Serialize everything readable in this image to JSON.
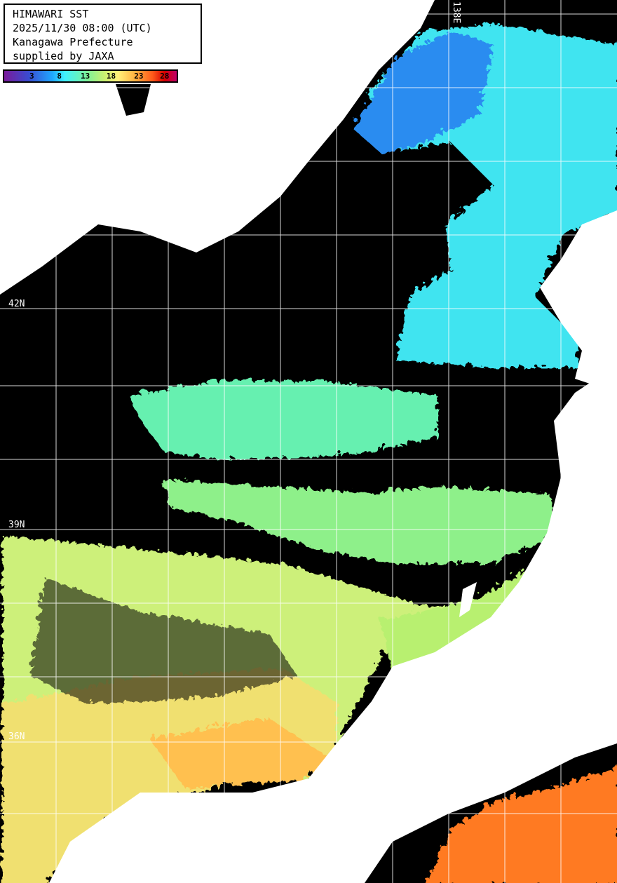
{
  "legend": {
    "title": "HIMAWARI SST",
    "datetime": "2025/11/30 08:00 (UTC)",
    "region": "Kanagawa Prefecture",
    "credit": "supplied by JAXA"
  },
  "colorbar": {
    "ticks": [
      "3",
      "8",
      "13",
      "18",
      "23",
      "28"
    ],
    "colors": [
      "#7a1a9a",
      "#3a4bd0",
      "#1fa8ff",
      "#3ff0ff",
      "#7cf39a",
      "#c9f070",
      "#fff07a",
      "#ffb040",
      "#ff5a1a",
      "#d40000",
      "#c0006a"
    ]
  },
  "grid": {
    "lat_labels": [
      "42N",
      "39N",
      "36N"
    ],
    "lon_labels": [
      "138E"
    ]
  },
  "colors": {
    "land": "#ffffff",
    "no_data": "#000000",
    "grid": "#ffffff"
  }
}
